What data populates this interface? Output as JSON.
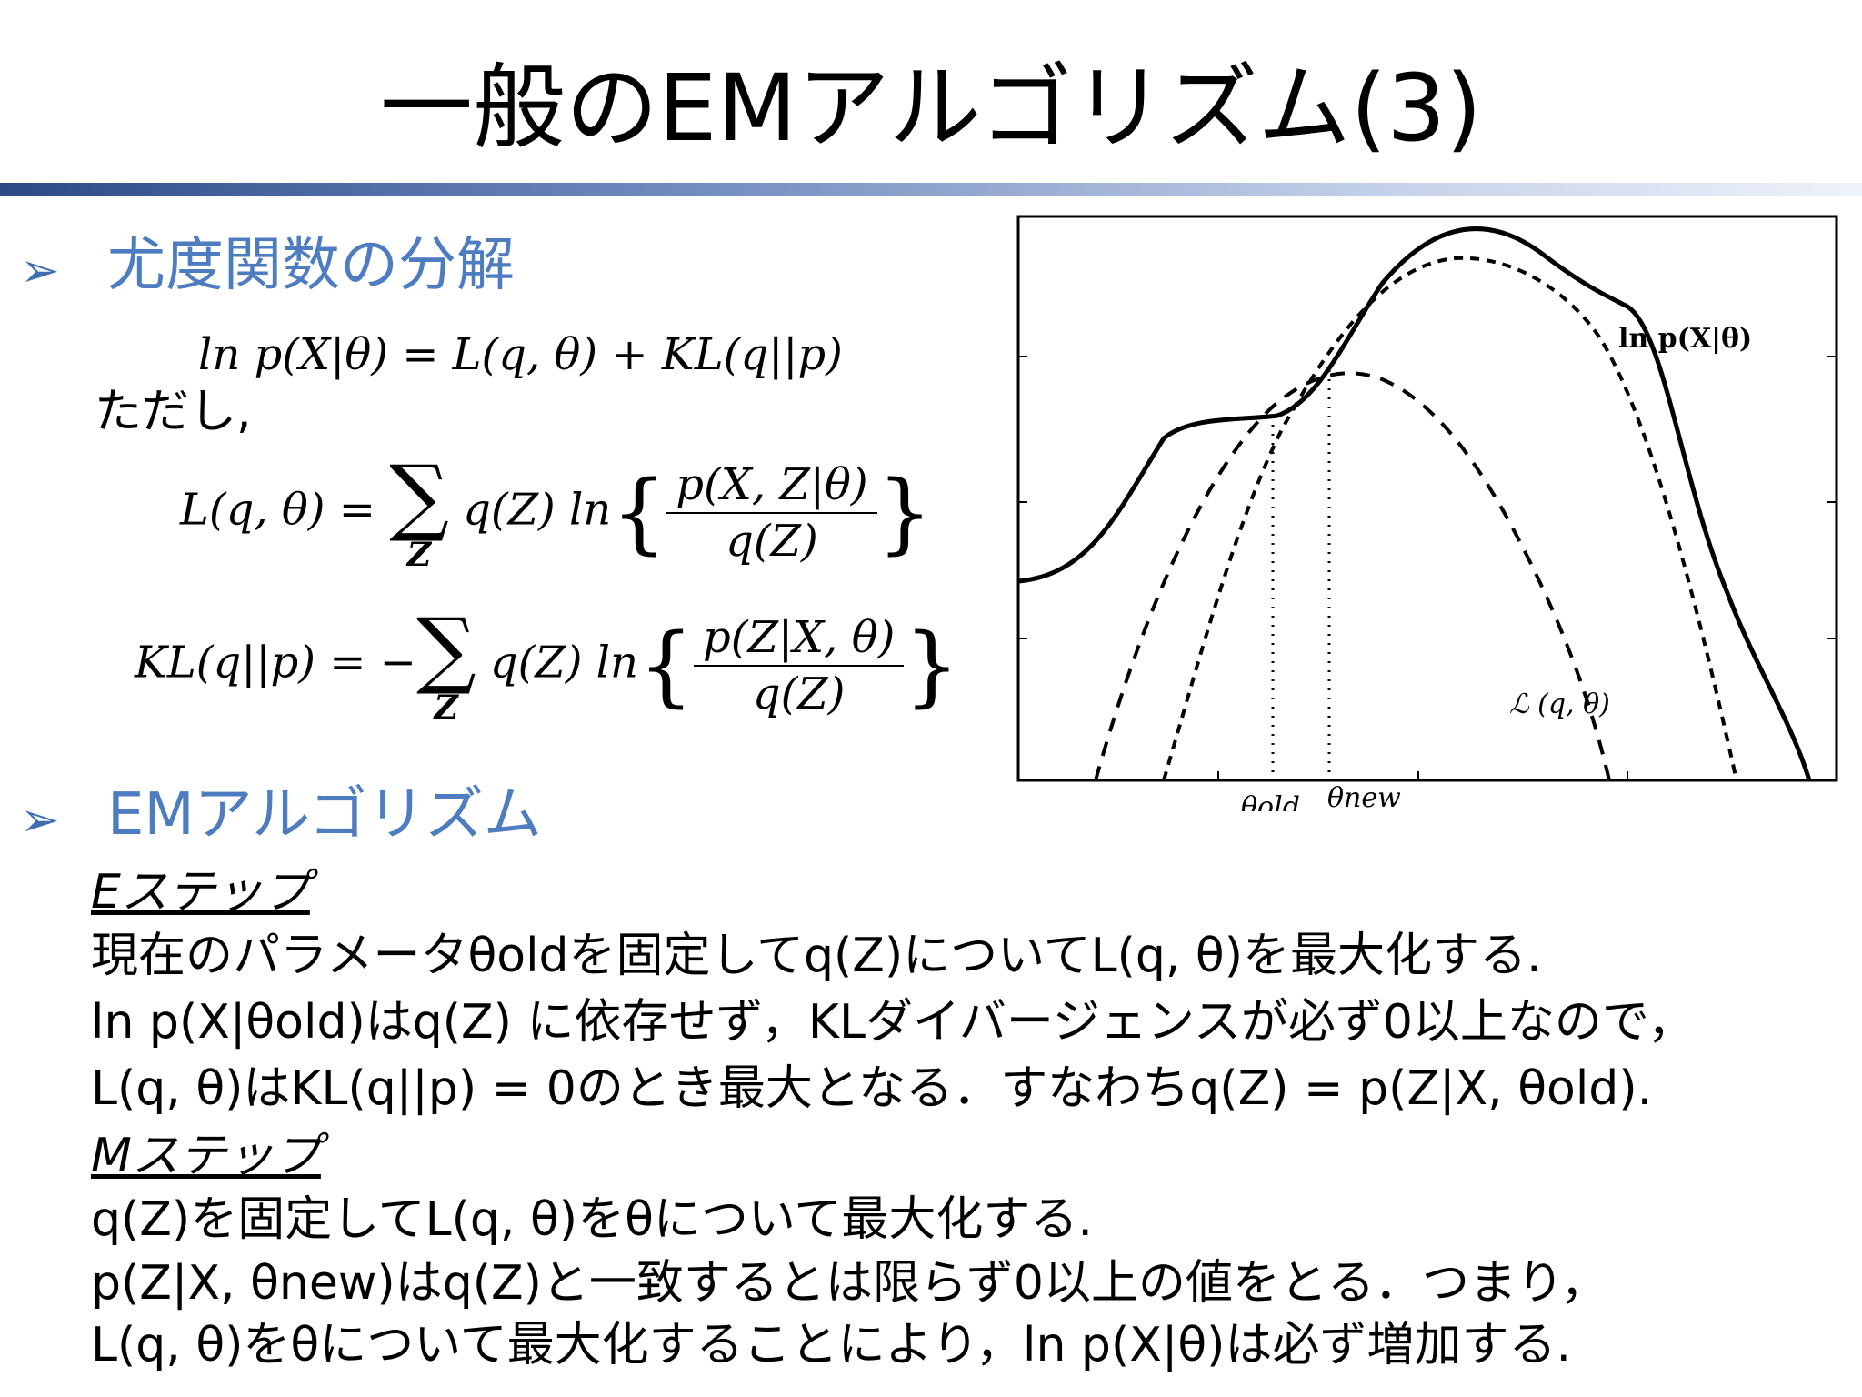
{
  "title": "一般のEMアルゴリズム(3)",
  "section1": {
    "bullet": "➢",
    "heading": "尤度関数の分解",
    "eq_main": "ln p(X|θ) = L(q, θ) + KL(q||p)",
    "tadashi": "ただし,",
    "eq_L_lhs": "L(q, θ) = ",
    "eq_L_sum_sub": "Z",
    "eq_L_term": "q(Z) ln",
    "eq_L_num": "p(X, Z|θ)",
    "eq_L_den": "q(Z)",
    "eq_KL_lhs": "KL(q||p) = −",
    "eq_KL_sum_sub": "Z",
    "eq_KL_term": "q(Z) ln",
    "eq_KL_num": "p(Z|X, θ)",
    "eq_KL_den": "q(Z)"
  },
  "section2": {
    "bullet": "➢",
    "heading": "EMアルゴリズム",
    "estep_title": "Eステップ",
    "estep_lines": [
      "現在のパラメータθoldを固定してq(Z)についてL(q, θ)を最大化する.",
      "ln p(X|θold)はq(Z) に依存せず，KLダイバージェンスが必ず0以上なので，",
      "L(q, θ)はKL(q||p) = 0のとき最大となる．すなわちq(Z) = p(Z|X, θold)."
    ],
    "mstep_title": "Mステップ",
    "mstep_lines": [
      "q(Z)を固定してL(q, θ)をθについて最大化する.",
      "p(Z|X, θnew)はq(Z)と一致するとは限らず0以上の値をとる．つまり，",
      "L(q, θ)をθについて最大化することにより，ln p(X|θ)は必ず増加する."
    ]
  },
  "figure": {
    "label_lnp": "ln p(X|θ)",
    "label_L": "ℒ (q, θ)",
    "label_old": "θold",
    "label_new": "θnew"
  },
  "colors": {
    "accent": "#4d7cc0",
    "rule_dark": "#2c4a86"
  }
}
